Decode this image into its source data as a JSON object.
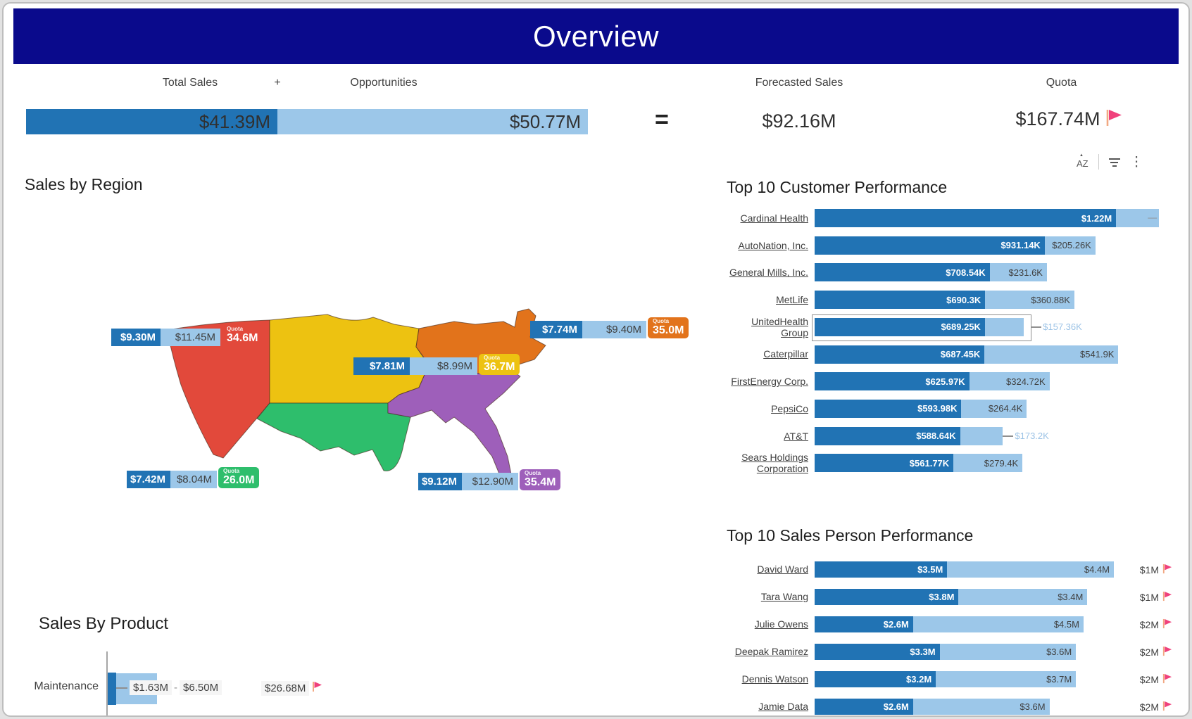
{
  "banner": {
    "title": "Overview"
  },
  "kpi": {
    "total_sales_label": "Total Sales",
    "plus_sign": "+",
    "opportunities_label": "Opportunities",
    "equals_sign": "=",
    "forecasted_label": "Forecasted Sales",
    "quota_label": "Quota",
    "total_sales_value": "$41.39M",
    "opportunities_value": "$50.77M",
    "forecasted_value": "$92.16M",
    "quota_value": "$167.74M"
  },
  "toolbar": {
    "sort_label": "AZ"
  },
  "sales_by_region": {
    "title": "Sales by Region",
    "quota_caption": "Quota",
    "regions": [
      {
        "id": "west",
        "color": "#E2493B",
        "sales": "$9.30M",
        "opportunities": "$11.45M",
        "quota": "34.6M"
      },
      {
        "id": "central",
        "color": "#EDC211",
        "sales": "$7.81M",
        "opportunities": "$8.99M",
        "quota": "36.7M"
      },
      {
        "id": "northeast",
        "color": "#E2731B",
        "sales": "$7.74M",
        "opportunities": "$9.40M",
        "quota": "35.0M"
      },
      {
        "id": "southwest",
        "color": "#2EBE6C",
        "sales": "$7.42M",
        "opportunities": "$8.04M",
        "quota": "26.0M"
      },
      {
        "id": "southeast",
        "color": "#9E5FBA",
        "sales": "$9.12M",
        "opportunities": "$12.90M",
        "quota": "35.4M"
      }
    ]
  },
  "top_customers": {
    "title": "Top 10 Customer Performance",
    "rows": [
      {
        "name": "Cardinal Health",
        "sales_label": "$1.22M",
        "sales_k": 1220,
        "opp_label": "",
        "opp_k": 174,
        "end_marker": "—"
      },
      {
        "name": "AutoNation, Inc.",
        "sales_label": "$931.14K",
        "sales_k": 931.14,
        "opp_label": "$205.26K",
        "opp_k": 205.26
      },
      {
        "name": "General Mills, Inc.",
        "sales_label": "$708.54K",
        "sales_k": 708.54,
        "opp_label": "$231.6K",
        "opp_k": 231.6
      },
      {
        "name": "MetLife",
        "sales_label": "$690.3K",
        "sales_k": 690.3,
        "opp_label": "$360.88K",
        "opp_k": 360.88
      },
      {
        "name": "UnitedHealth\nGroup",
        "sales_label": "$689.25K",
        "sales_k": 689.25,
        "opp_label": "",
        "opp_k": 157.36,
        "outside_label": "$157.36K",
        "highlighted": true
      },
      {
        "name": "Caterpillar",
        "sales_label": "$687.45K",
        "sales_k": 687.45,
        "opp_label": "$541.9K",
        "opp_k": 541.9
      },
      {
        "name": "FirstEnergy Corp.",
        "sales_label": "$625.97K",
        "sales_k": 625.97,
        "opp_label": "$324.72K",
        "opp_k": 324.72
      },
      {
        "name": "PepsiCo",
        "sales_label": "$593.98K",
        "sales_k": 593.98,
        "opp_label": "$264.4K",
        "opp_k": 264.4
      },
      {
        "name": "AT&T",
        "sales_label": "$588.64K",
        "sales_k": 588.64,
        "opp_label": "",
        "opp_k": 173.2,
        "outside_label": "$173.2K"
      },
      {
        "name": "Sears Holdings\nCorporation",
        "sales_label": "$561.77K",
        "sales_k": 561.77,
        "opp_label": "$279.4K",
        "opp_k": 279.4
      }
    ]
  },
  "top_salespeople": {
    "title": "Top 10 Sales Person Performance",
    "rows": [
      {
        "name": "David Ward",
        "sales_label": "$3.5M",
        "sales_m": 3.5,
        "opp_label": "$4.4M",
        "opp_m": 4.4,
        "quota_label": "$1M"
      },
      {
        "name": "Tara Wang",
        "sales_label": "$3.8M",
        "sales_m": 3.8,
        "opp_label": "$3.4M",
        "opp_m": 3.4,
        "quota_label": "$1M"
      },
      {
        "name": "Julie Owens",
        "sales_label": "$2.6M",
        "sales_m": 2.6,
        "opp_label": "$4.5M",
        "opp_m": 4.5,
        "quota_label": "$2M"
      },
      {
        "name": "Deepak Ramirez",
        "sales_label": "$3.3M",
        "sales_m": 3.3,
        "opp_label": "$3.6M",
        "opp_m": 3.6,
        "quota_label": "$2M"
      },
      {
        "name": "Dennis Watson",
        "sales_label": "$3.2M",
        "sales_m": 3.2,
        "opp_label": "$3.7M",
        "opp_m": 3.7,
        "quota_label": "$2M"
      },
      {
        "name": "Jamie Data",
        "sales_label": "$2.6M",
        "sales_m": 2.6,
        "opp_label": "$3.6M",
        "opp_m": 3.6,
        "quota_label": "$2M"
      }
    ]
  },
  "sales_by_product": {
    "title": "Sales By Product",
    "rows": [
      {
        "name": "Maintenance",
        "sales_label": "$1.63M",
        "opp_label": "$6.50M",
        "quota_label": "$26.68M"
      }
    ]
  },
  "colors": {
    "banner": "#0A0A8C",
    "sales_bar": "#2173B4",
    "opportunity_bar": "#9CC7E9",
    "flag": "#F0417C",
    "flag_pole": "#F2A983",
    "outside_value_text": "#9CC3E6"
  }
}
